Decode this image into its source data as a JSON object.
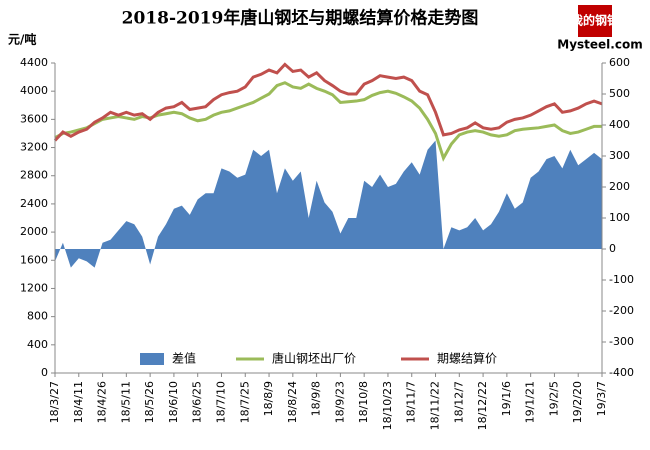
{
  "chart_data": {
    "type": "combo",
    "title": "2018-2019年唐山钢坯与期螺结算价格走势图",
    "y_label": "元/吨",
    "brand_cn": "我的钢铁",
    "brand": "Mysteel.com",
    "categories": [
      "18/3/27",
      null,
      null,
      "18/4/11",
      null,
      null,
      "18/4/26",
      null,
      null,
      "18/5/11",
      null,
      null,
      "18/5/26",
      null,
      null,
      "18/6/10",
      null,
      null,
      "18/6/25",
      null,
      null,
      "18/7/10",
      null,
      null,
      "18/7/25",
      null,
      null,
      "18/8/9",
      null,
      null,
      "18/8/24",
      null,
      null,
      "18/9/8",
      null,
      null,
      "18/9/23",
      null,
      null,
      "18/10/8",
      null,
      null,
      "18/10/23",
      null,
      null,
      "18/11/7",
      null,
      null,
      "18/11/22",
      null,
      null,
      "18/12/7",
      null,
      null,
      "18/12/22",
      null,
      null,
      "19/1/6",
      null,
      null,
      "19/1/21",
      null,
      null,
      "19/2/5",
      null,
      null,
      "19/2/20",
      null,
      null,
      "19/3/7"
    ],
    "ylim": [
      0,
      4400
    ],
    "yticks": [
      0,
      400,
      800,
      1200,
      1600,
      2000,
      2400,
      2800,
      3200,
      3600,
      4000,
      4400
    ],
    "y2lim": [
      -400,
      600
    ],
    "y2ticks": [
      -400,
      -300,
      -200,
      -100,
      0,
      100,
      200,
      300,
      400,
      500,
      600
    ],
    "grid": false,
    "legend": "bottom",
    "series": [
      {
        "name": "差值",
        "type": "area",
        "axis": "y2",
        "color": "#4f81bd",
        "values": [
          -40,
          20,
          -60,
          -30,
          -40,
          -60,
          20,
          30,
          60,
          90,
          80,
          40,
          -50,
          40,
          80,
          130,
          140,
          110,
          160,
          180,
          180,
          260,
          250,
          230,
          240,
          320,
          300,
          320,
          180,
          260,
          220,
          250,
          100,
          220,
          150,
          120,
          50,
          100,
          100,
          220,
          200,
          240,
          200,
          210,
          250,
          280,
          240,
          320,
          350,
          0,
          70,
          60,
          70,
          100,
          60,
          80,
          120,
          180,
          130,
          150,
          230,
          250,
          290,
          300,
          260,
          320,
          270,
          290,
          310,
          290
        ]
      },
      {
        "name": "唐山钢坯出厂价",
        "type": "line",
        "color": "#9bbb59",
        "values": [
          3340,
          3400,
          3420,
          3450,
          3480,
          3540,
          3600,
          3620,
          3640,
          3620,
          3600,
          3640,
          3620,
          3660,
          3680,
          3700,
          3680,
          3620,
          3580,
          3600,
          3660,
          3700,
          3720,
          3760,
          3800,
          3840,
          3900,
          3960,
          4080,
          4120,
          4060,
          4040,
          4100,
          4040,
          4000,
          3950,
          3840,
          3850,
          3860,
          3880,
          3940,
          3980,
          4000,
          3970,
          3920,
          3860,
          3760,
          3600,
          3400,
          3050,
          3250,
          3380,
          3420,
          3440,
          3420,
          3380,
          3360,
          3380,
          3440,
          3460,
          3470,
          3480,
          3500,
          3520,
          3440,
          3400,
          3420,
          3460,
          3500,
          3500
        ]
      },
      {
        "name": "期螺结算价",
        "type": "line",
        "color": "#c0504d",
        "values": [
          3300,
          3420,
          3360,
          3420,
          3460,
          3560,
          3620,
          3700,
          3660,
          3700,
          3660,
          3680,
          3600,
          3700,
          3760,
          3780,
          3840,
          3740,
          3760,
          3780,
          3880,
          3950,
          3980,
          4000,
          4060,
          4200,
          4240,
          4300,
          4260,
          4380,
          4280,
          4300,
          4200,
          4260,
          4150,
          4080,
          4000,
          3960,
          3960,
          4100,
          4150,
          4220,
          4200,
          4180,
          4200,
          4150,
          4000,
          3950,
          3700,
          3380,
          3400,
          3450,
          3480,
          3550,
          3480,
          3460,
          3480,
          3560,
          3600,
          3620,
          3660,
          3720,
          3780,
          3820,
          3700,
          3720,
          3760,
          3820,
          3860,
          3820
        ]
      }
    ]
  }
}
